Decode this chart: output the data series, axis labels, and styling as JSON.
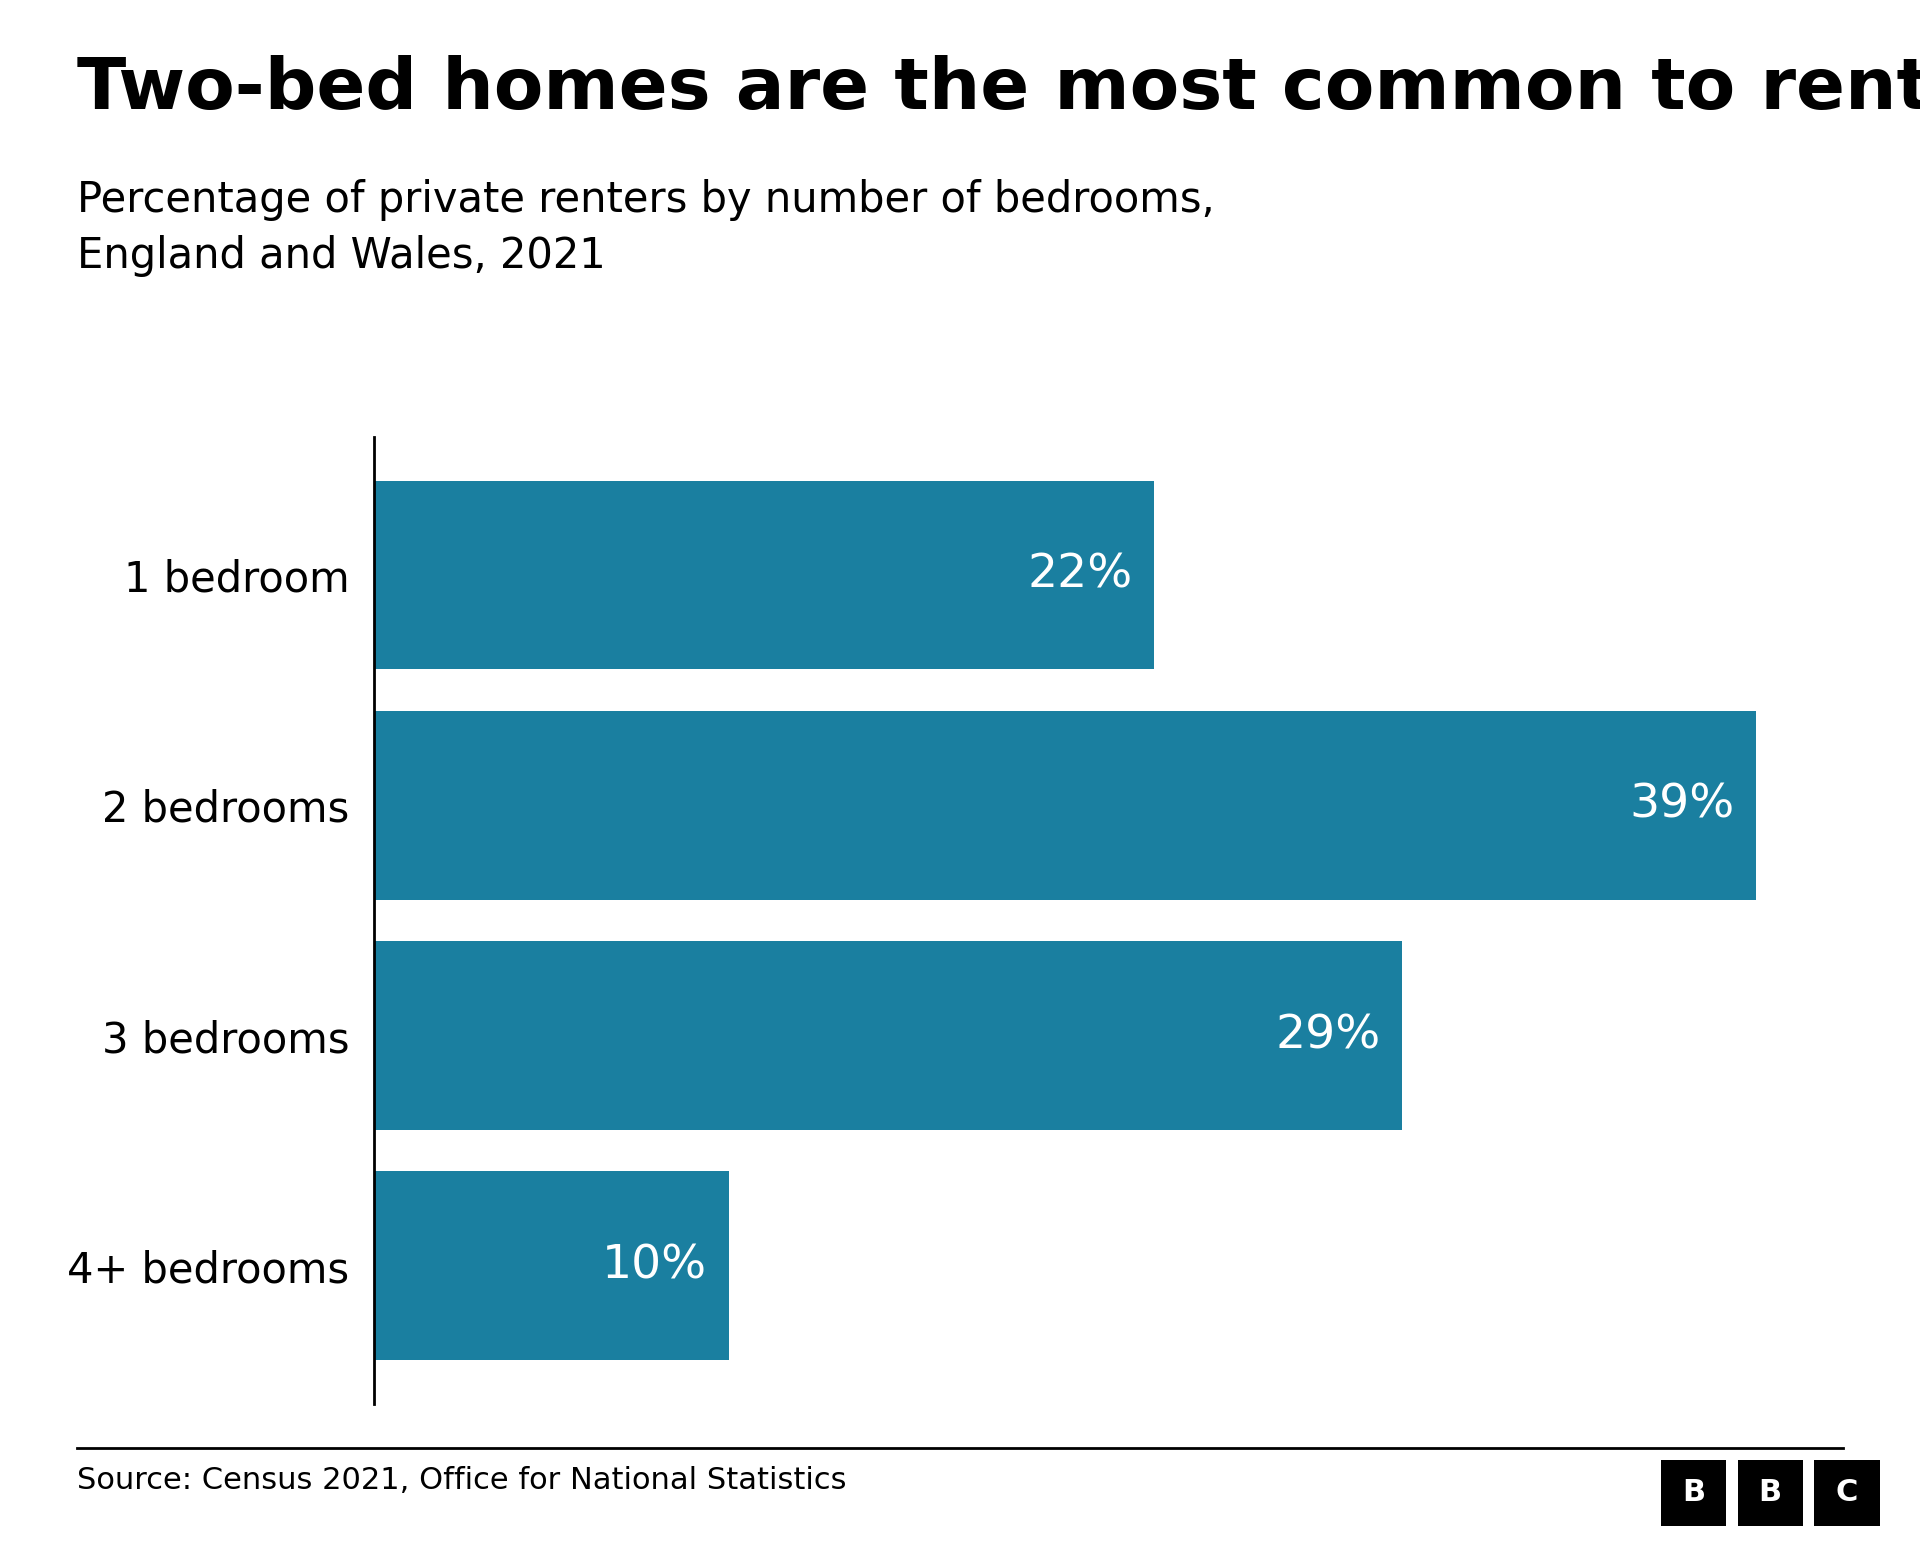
{
  "title": "Two-bed homes are the most common to rent",
  "subtitle": "Percentage of private renters by number of bedrooms,\nEngland and Wales, 2021",
  "categories": [
    "1 bedroom",
    "2 bedrooms",
    "3 bedrooms",
    "4+ bedrooms"
  ],
  "values": [
    22,
    39,
    29,
    10
  ],
  "labels": [
    "22%",
    "39%",
    "29%",
    "10%"
  ],
  "bar_color": "#1a7fa0",
  "background_color": "#ffffff",
  "source_text": "Source: Census 2021, Office for National Statistics",
  "title_fontsize": 52,
  "subtitle_fontsize": 30,
  "label_fontsize": 34,
  "ytick_fontsize": 30,
  "source_fontsize": 22,
  "xlim": [
    0,
    42
  ],
  "bar_height": 0.82
}
